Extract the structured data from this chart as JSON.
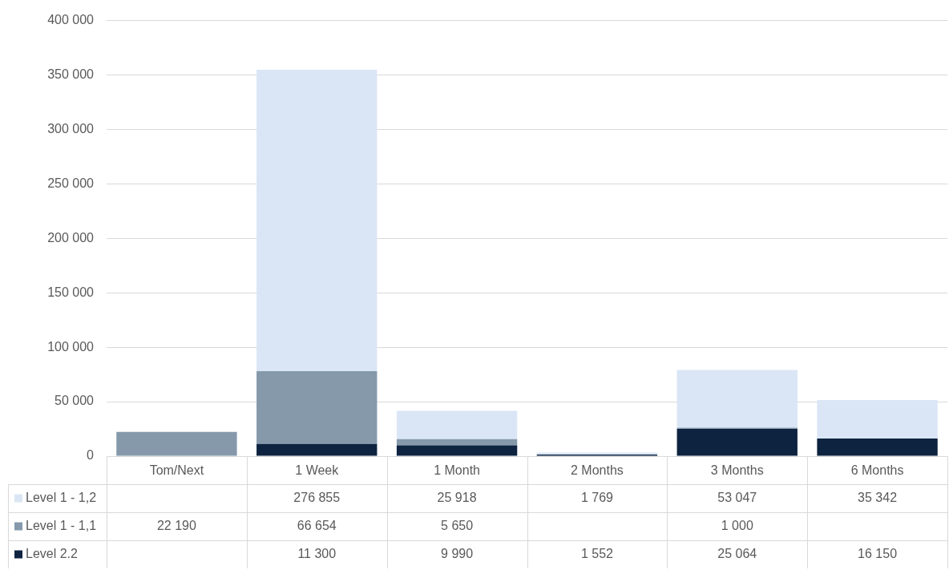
{
  "chart_data": {
    "type": "bar",
    "stacked": true,
    "categories": [
      "Tom/Next",
      "1 Week",
      "1 Month",
      "2 Months",
      "3 Months",
      "6 Months"
    ],
    "series": [
      {
        "name": "Level 2.2",
        "color": "#0d2340",
        "values": [
          null,
          11300,
          9990,
          1552,
          25064,
          16150
        ]
      },
      {
        "name": "Level 1 - 1,1",
        "color": "#8599ab",
        "values": [
          22190,
          66654,
          5650,
          null,
          1000,
          null
        ]
      },
      {
        "name": "Level 1 - 1,2",
        "color": "#dae6f5",
        "values": [
          null,
          276855,
          25918,
          1769,
          53047,
          35342
        ]
      }
    ],
    "ylim": [
      0,
      400000
    ],
    "yticks": [
      0,
      {
        "value": 50000,
        "label": "50 000"
      },
      {
        "value": 100000,
        "label": "100 000"
      },
      {
        "value": 150000,
        "label": "150 000"
      },
      {
        "value": 200000,
        "label": "200 000"
      },
      {
        "value": 250000,
        "label": "250 000"
      },
      {
        "value": 300000,
        "label": "300 000"
      },
      {
        "value": 350000,
        "label": "350 000"
      },
      {
        "value": 400000,
        "label": "400 000"
      }
    ],
    "grid": "y",
    "legend": "bottom",
    "data_labels": true
  }
}
